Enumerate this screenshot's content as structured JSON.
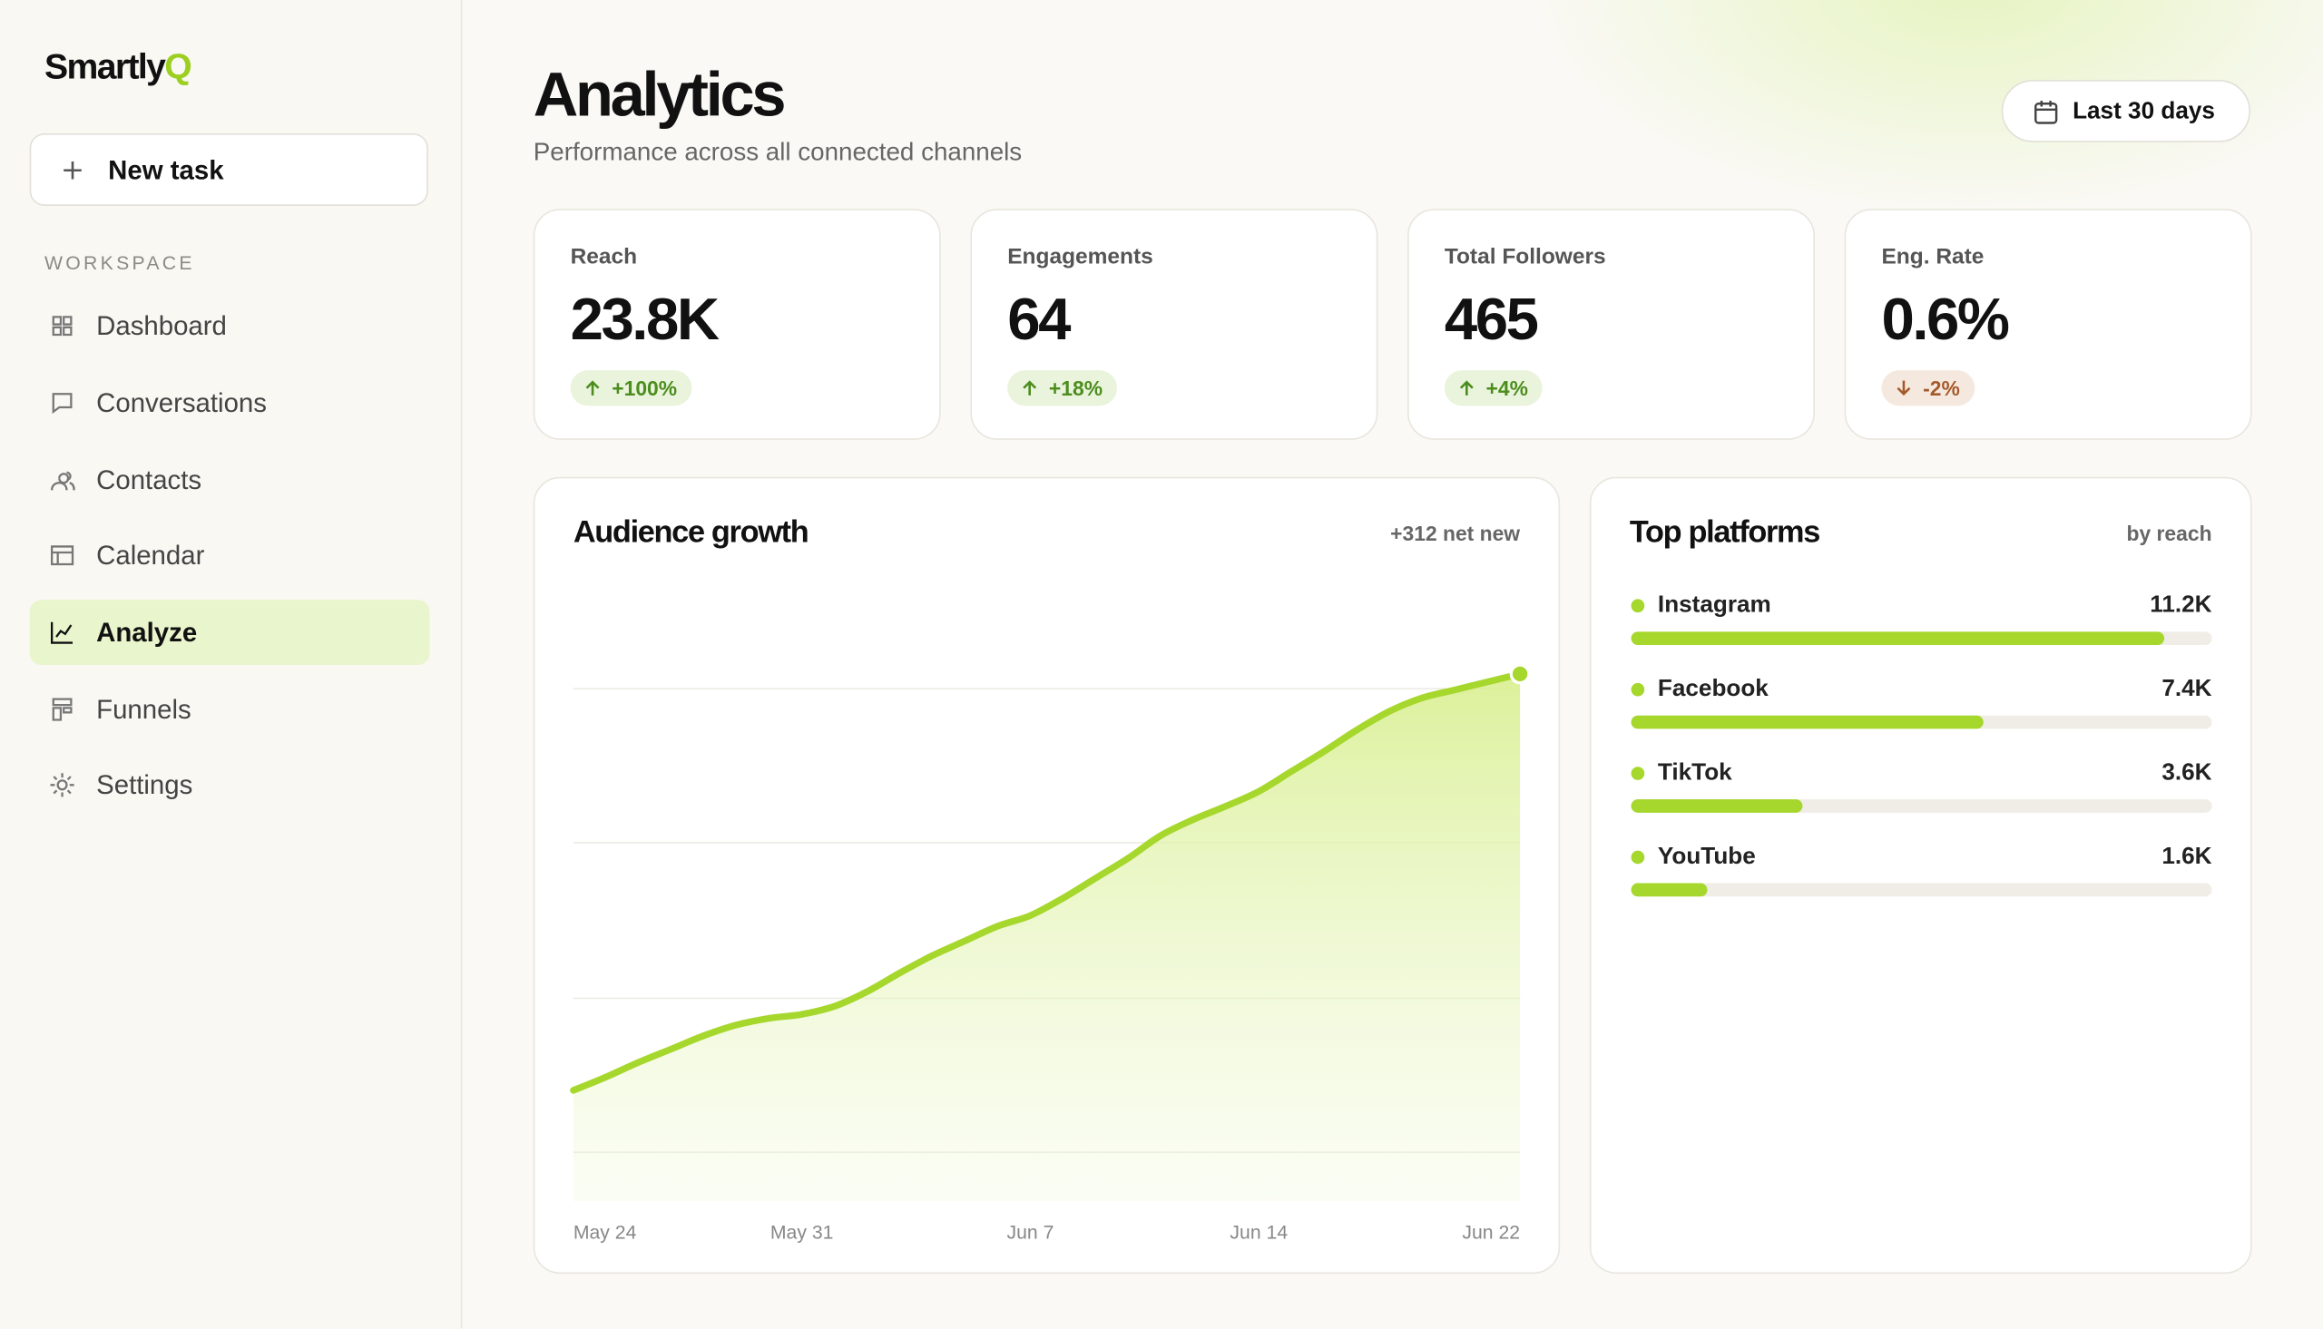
{
  "sidebar": {
    "logo": "Smartly",
    "logo_accent": "Q",
    "new_task": "New task",
    "section": "WORKSPACE",
    "items": [
      "Dashboard",
      "Conversations",
      "Contacts",
      "Calendar",
      "Analyze",
      "Funnels",
      "Settings"
    ],
    "active": 4
  },
  "header": {
    "title": "Analytics",
    "subtitle": "Performance across all connected channels",
    "date_range": "Last 30 days"
  },
  "kpis": [
    {
      "label": "Reach",
      "value": "23.8K",
      "change": "+100%",
      "direction": "up"
    },
    {
      "label": "Engagements",
      "value": "64",
      "change": "+18%",
      "direction": "up"
    },
    {
      "label": "Total Followers",
      "value": "465",
      "change": "+4%",
      "direction": "up"
    },
    {
      "label": "Eng. Rate",
      "value": "0.6%",
      "change": "-2%",
      "direction": "down"
    }
  ],
  "chart_data": [
    {
      "type": "line",
      "title": "Audience growth",
      "annotation": "+312 net new",
      "color": "#a6d72c",
      "categories": [
        "May 24",
        null,
        null,
        null,
        null,
        null,
        null,
        "May 31",
        null,
        null,
        null,
        null,
        null,
        null,
        "Jun 7",
        null,
        null,
        null,
        null,
        null,
        null,
        "Jun 14",
        null,
        null,
        null,
        null,
        null,
        null,
        null,
        "Jun 22"
      ],
      "values": [
        153,
        163,
        174,
        184,
        194,
        202,
        207,
        210,
        216,
        227,
        241,
        254,
        265,
        276,
        284,
        297,
        312,
        327,
        344,
        356,
        366,
        377,
        392,
        407,
        423,
        437,
        447,
        453,
        459,
        465
      ],
      "ylim": [
        70,
        480
      ]
    },
    {
      "type": "bar",
      "orientation": "horizontal",
      "title": "Top platforms",
      "subtitle": "by reach",
      "color": "#a6d72c",
      "categories": [
        "Instagram",
        "Facebook",
        "TikTok",
        "YouTube"
      ],
      "values": [
        11200,
        7400,
        3600,
        1600
      ],
      "value_labels": [
        "11.2K",
        "7.4K",
        "3.6K",
        "1.6K"
      ],
      "xlim": [
        0,
        12200
      ]
    }
  ]
}
